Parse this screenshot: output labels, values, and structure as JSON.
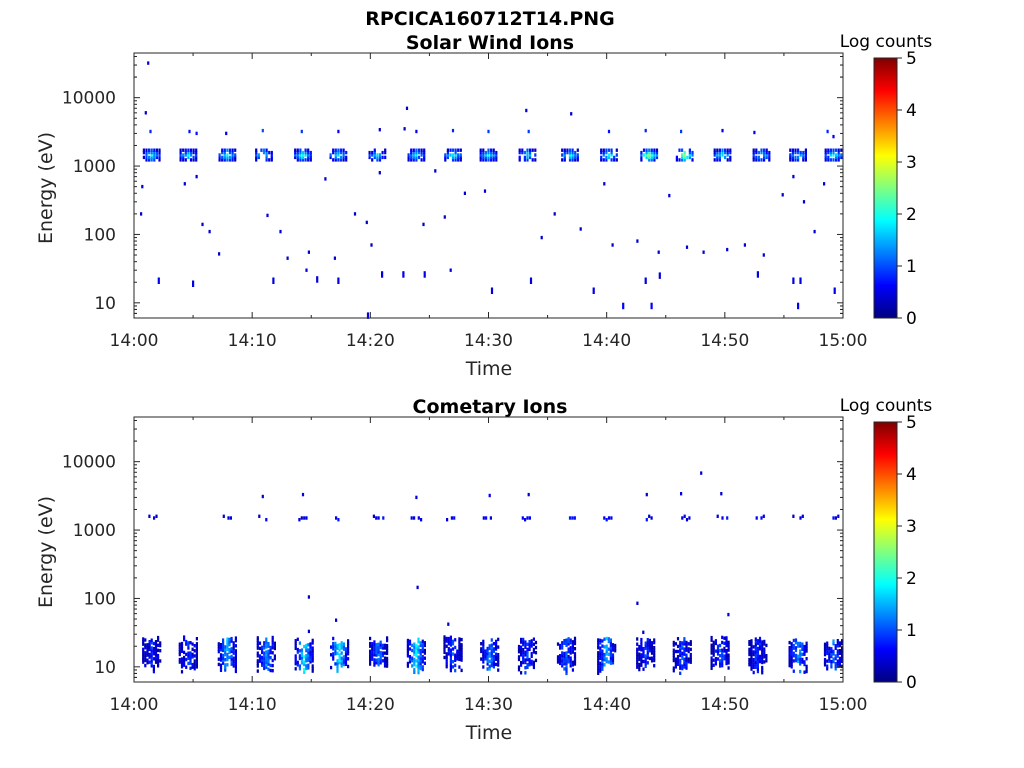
{
  "figure": {
    "title": "RPCICA160712T14.PNG"
  },
  "chart_data": [
    {
      "type": "heatmap",
      "title": "Solar Wind Ions",
      "xlabel": "Time",
      "ylabel": "Energy (eV)",
      "x_scale": "time",
      "y_scale": "log",
      "xlim": [
        "14:00",
        "15:00"
      ],
      "ylim": [
        6,
        45000
      ],
      "x_ticks": [
        "14:00",
        "14:10",
        "14:20",
        "14:30",
        "14:40",
        "14:50",
        "15:00"
      ],
      "y_ticks": [
        {
          "value": 10,
          "label": "10"
        },
        {
          "value": 100,
          "label": "100"
        },
        {
          "value": 1000,
          "label": "1000"
        },
        {
          "value": 10000,
          "label": "10000"
        }
      ],
      "colorbar": {
        "label": "Log counts",
        "min": 0,
        "max": 5,
        "ticks": [
          "0",
          "1",
          "2",
          "3",
          "4",
          "5"
        ],
        "colormap": "jet"
      },
      "beam_energy_eV": 1450,
      "beam_minutes": [
        1.5,
        4.6,
        7.9,
        11.0,
        14.3,
        17.3,
        20.6,
        23.9,
        27.0,
        30.0,
        33.3,
        36.9,
        40.2,
        43.6,
        46.6,
        49.8,
        53.1,
        56.2,
        59.2
      ],
      "beam_peak_log_counts": [
        1.8,
        1.7,
        1.9,
        1.8,
        1.9,
        1.8,
        1.6,
        1.7,
        1.9,
        1.8,
        1.7,
        1.8,
        2.0,
        2.5,
        2.6,
        1.9,
        1.7,
        1.6,
        1.9
      ],
      "points": [
        {
          "t": 1.2,
          "e": 32000,
          "v": 0.4
        },
        {
          "t": 1.0,
          "e": 6000,
          "v": 0.4
        },
        {
          "t": 1.4,
          "e": 3200,
          "v": 0.8
        },
        {
          "t": 4.7,
          "e": 3200,
          "v": 0.7
        },
        {
          "t": 5.3,
          "e": 3000,
          "v": 0.7
        },
        {
          "t": 7.8,
          "e": 3000,
          "v": 0.5
        },
        {
          "t": 10.9,
          "e": 3300,
          "v": 1.0
        },
        {
          "t": 14.2,
          "e": 3200,
          "v": 0.9
        },
        {
          "t": 17.3,
          "e": 3200,
          "v": 0.6
        },
        {
          "t": 20.8,
          "e": 3400,
          "v": 0.4
        },
        {
          "t": 23.1,
          "e": 7000,
          "v": 0.4
        },
        {
          "t": 23.9,
          "e": 3200,
          "v": 0.5
        },
        {
          "t": 27.0,
          "e": 3300,
          "v": 0.8
        },
        {
          "t": 30.0,
          "e": 3200,
          "v": 0.9
        },
        {
          "t": 33.4,
          "e": 3200,
          "v": 0.9
        },
        {
          "t": 33.2,
          "e": 6500,
          "v": 0.4
        },
        {
          "t": 37.0,
          "e": 5800,
          "v": 0.4
        },
        {
          "t": 40.2,
          "e": 3200,
          "v": 0.7
        },
        {
          "t": 43.3,
          "e": 3300,
          "v": 0.8
        },
        {
          "t": 46.3,
          "e": 3200,
          "v": 0.9
        },
        {
          "t": 49.8,
          "e": 3300,
          "v": 0.6
        },
        {
          "t": 52.5,
          "e": 3100,
          "v": 0.6
        },
        {
          "t": 58.7,
          "e": 3200,
          "v": 0.8
        },
        {
          "t": 59.2,
          "e": 2700,
          "v": 0.6
        },
        {
          "t": 0.7,
          "e": 500,
          "v": 0.4
        },
        {
          "t": 4.3,
          "e": 550,
          "v": 0.4
        },
        {
          "t": 5.3,
          "e": 700,
          "v": 0.4
        },
        {
          "t": 0.6,
          "e": 200,
          "v": 0.4
        },
        {
          "t": 5.8,
          "e": 140,
          "v": 0.4
        },
        {
          "t": 6.4,
          "e": 110,
          "v": 0.4
        },
        {
          "t": 7.2,
          "e": 52,
          "v": 0.4
        },
        {
          "t": 11.3,
          "e": 190,
          "v": 0.4
        },
        {
          "t": 12.4,
          "e": 110,
          "v": 0.4
        },
        {
          "t": 13.0,
          "e": 45,
          "v": 0.4
        },
        {
          "t": 14.8,
          "e": 55,
          "v": 0.4
        },
        {
          "t": 16.2,
          "e": 650,
          "v": 0.4
        },
        {
          "t": 17.0,
          "e": 45,
          "v": 0.4
        },
        {
          "t": 18.7,
          "e": 200,
          "v": 0.4
        },
        {
          "t": 19.7,
          "e": 150,
          "v": 0.4
        },
        {
          "t": 20.8,
          "e": 800,
          "v": 0.4
        },
        {
          "t": 22.9,
          "e": 3500,
          "v": 0.3
        },
        {
          "t": 25.5,
          "e": 850,
          "v": 0.4
        },
        {
          "t": 26.3,
          "e": 180,
          "v": 0.4
        },
        {
          "t": 28.0,
          "e": 400,
          "v": 0.4
        },
        {
          "t": 29.7,
          "e": 430,
          "v": 0.4
        },
        {
          "t": 34.5,
          "e": 90,
          "v": 0.4
        },
        {
          "t": 35.6,
          "e": 200,
          "v": 0.4
        },
        {
          "t": 37.8,
          "e": 120,
          "v": 0.4
        },
        {
          "t": 39.8,
          "e": 550,
          "v": 0.4
        },
        {
          "t": 40.5,
          "e": 70,
          "v": 0.4
        },
        {
          "t": 42.6,
          "e": 80,
          "v": 0.4
        },
        {
          "t": 44.4,
          "e": 55,
          "v": 0.4
        },
        {
          "t": 45.3,
          "e": 370,
          "v": 0.4
        },
        {
          "t": 46.8,
          "e": 65,
          "v": 0.4
        },
        {
          "t": 48.2,
          "e": 55,
          "v": 0.4
        },
        {
          "t": 50.2,
          "e": 60,
          "v": 0.4
        },
        {
          "t": 51.7,
          "e": 70,
          "v": 0.4
        },
        {
          "t": 53.3,
          "e": 50,
          "v": 0.4
        },
        {
          "t": 54.9,
          "e": 380,
          "v": 0.4
        },
        {
          "t": 55.8,
          "e": 700,
          "v": 0.4
        },
        {
          "t": 56.7,
          "e": 300,
          "v": 0.4
        },
        {
          "t": 57.6,
          "e": 110,
          "v": 0.4
        },
        {
          "t": 58.4,
          "e": 550,
          "v": 0.4
        },
        {
          "t": 20.1,
          "e": 70,
          "v": 0.3
        },
        {
          "t": 24.5,
          "e": 140,
          "v": 0.3
        },
        {
          "t": 2.1,
          "e": 21,
          "v": 0.6
        },
        {
          "t": 5.0,
          "e": 19,
          "v": 0.5
        },
        {
          "t": 11.8,
          "e": 21,
          "v": 0.5
        },
        {
          "t": 14.6,
          "e": 30,
          "v": 0.5
        },
        {
          "t": 15.5,
          "e": 22,
          "v": 0.5
        },
        {
          "t": 17.3,
          "e": 21,
          "v": 0.5
        },
        {
          "t": 19.8,
          "e": 6.5,
          "v": 0.5
        },
        {
          "t": 21.0,
          "e": 26,
          "v": 0.5
        },
        {
          "t": 24.6,
          "e": 26,
          "v": 0.5
        },
        {
          "t": 26.8,
          "e": 30,
          "v": 0.5
        },
        {
          "t": 30.3,
          "e": 15,
          "v": 0.5
        },
        {
          "t": 33.6,
          "e": 21,
          "v": 0.5
        },
        {
          "t": 38.9,
          "e": 15,
          "v": 0.5
        },
        {
          "t": 41.4,
          "e": 9,
          "v": 0.6
        },
        {
          "t": 43.3,
          "e": 21,
          "v": 0.5
        },
        {
          "t": 43.8,
          "e": 9,
          "v": 0.6
        },
        {
          "t": 44.5,
          "e": 25,
          "v": 0.5
        },
        {
          "t": 52.8,
          "e": 26,
          "v": 0.5
        },
        {
          "t": 55.8,
          "e": 21,
          "v": 0.5
        },
        {
          "t": 56.4,
          "e": 21,
          "v": 0.5
        },
        {
          "t": 56.2,
          "e": 9,
          "v": 0.6
        },
        {
          "t": 59.3,
          "e": 15,
          "v": 0.5
        },
        {
          "t": 22.8,
          "e": 26,
          "v": 0.5
        }
      ]
    },
    {
      "type": "heatmap",
      "title": "Cometary Ions",
      "xlabel": "Time",
      "ylabel": "Energy (eV)",
      "x_scale": "time",
      "y_scale": "log",
      "xlim": [
        "14:00",
        "15:00"
      ],
      "ylim": [
        6,
        45000
      ],
      "x_ticks": [
        "14:00",
        "14:10",
        "14:20",
        "14:30",
        "14:40",
        "14:50",
        "15:00"
      ],
      "y_ticks": [
        {
          "value": 10,
          "label": "10"
        },
        {
          "value": 100,
          "label": "100"
        },
        {
          "value": 1000,
          "label": "1000"
        },
        {
          "value": 10000,
          "label": "10000"
        }
      ],
      "colorbar": {
        "label": "Log counts",
        "min": 0,
        "max": 5,
        "ticks": [
          "0",
          "1",
          "2",
          "3",
          "4",
          "5"
        ],
        "colormap": "jet"
      },
      "low_energy_burst_minutes": [
        1.5,
        4.6,
        7.9,
        11.2,
        14.4,
        17.4,
        20.7,
        23.9,
        27.0,
        30.1,
        33.3,
        36.6,
        40.0,
        43.3,
        46.4,
        49.6,
        52.8,
        56.2,
        59.2
      ],
      "low_energy_burst_peak_log_counts": [
        0.7,
        0.8,
        1.4,
        1.2,
        1.7,
        1.8,
        1.1,
        1.8,
        0.9,
        1.2,
        0.9,
        1.0,
        1.5,
        0.8,
        0.9,
        1.0,
        0.8,
        1.3,
        1.1
      ],
      "upper_band_energy_eV": 1500,
      "upper_band_minutes": [
        1.5,
        7.8,
        11.0,
        14.4,
        17.3,
        20.7,
        23.9,
        26.9,
        30.0,
        33.3,
        36.9,
        40.2,
        43.6,
        46.6,
        49.8,
        53.1,
        56.2,
        59.2
      ],
      "points": [
        {
          "t": 10.9,
          "e": 3100,
          "v": 0.4
        },
        {
          "t": 14.3,
          "e": 3300,
          "v": 0.5
        },
        {
          "t": 23.9,
          "e": 3000,
          "v": 0.4
        },
        {
          "t": 30.1,
          "e": 3200,
          "v": 0.5
        },
        {
          "t": 33.4,
          "e": 3300,
          "v": 0.4
        },
        {
          "t": 43.4,
          "e": 3300,
          "v": 0.4
        },
        {
          "t": 46.3,
          "e": 3400,
          "v": 0.5
        },
        {
          "t": 48.0,
          "e": 6800,
          "v": 0.4
        },
        {
          "t": 49.7,
          "e": 3400,
          "v": 0.4
        },
        {
          "t": 14.8,
          "e": 105,
          "v": 0.4
        },
        {
          "t": 24.0,
          "e": 145,
          "v": 0.4
        },
        {
          "t": 42.6,
          "e": 85,
          "v": 0.4
        },
        {
          "t": 50.3,
          "e": 58,
          "v": 0.4
        },
        {
          "t": 17.1,
          "e": 48,
          "v": 0.4
        },
        {
          "t": 26.6,
          "e": 42,
          "v": 0.4
        },
        {
          "t": 14.8,
          "e": 33,
          "v": 0.4
        },
        {
          "t": 43.1,
          "e": 32,
          "v": 0.4
        }
      ]
    }
  ]
}
